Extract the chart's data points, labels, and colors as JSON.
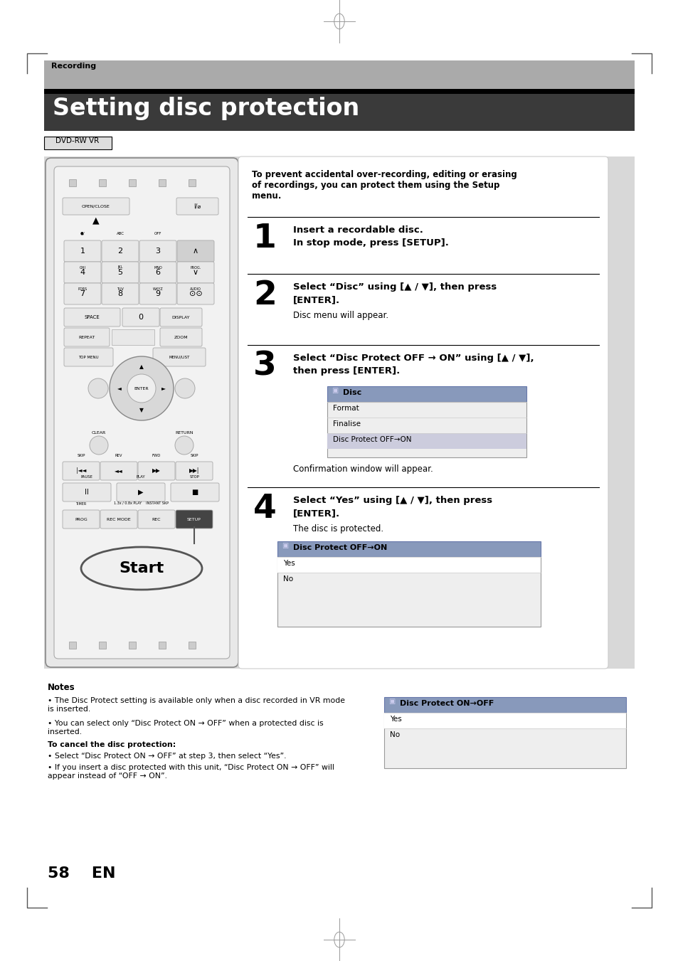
{
  "bg_color": "#ffffff",
  "header_band_color": "#aaaaaa",
  "header_text": "Recording",
  "title_band_color": "#3a3a3a",
  "title_text": "Setting disc protection",
  "subtitle_label": "DVD-RW VR",
  "intro_text": "To prevent accidental over-recording, editing or erasing\nof recordings, you can protect them using the Setup\nmenu.",
  "step1_line1": "Insert a recordable disc.",
  "step1_line2": "In stop mode, press [SETUP].",
  "step2_line1": "Select “Disc” using [▲ / ▼], then press",
  "step2_line2": "[ENTER].",
  "step2_sub": "Disc menu will appear.",
  "step3_line1": "Select “Disc Protect OFF → ON” using [▲ / ▼],",
  "step3_line2": "then press [ENTER].",
  "step3_sub": "Confirmation window will appear.",
  "step4_line1": "Select “Yes” using [▲ / ▼], then press",
  "step4_line2": "[ENTER].",
  "step4_sub": "The disc is protected.",
  "disc_menu_title": "Disc",
  "disc_menu_items": [
    "Format",
    "Finalise",
    "Disc Protect OFF→ON"
  ],
  "disc_protect_title": "Disc Protect OFF→ON",
  "disc_protect_items": [
    "Yes",
    "No"
  ],
  "disc_protect2_title": "Disc Protect ON→OFF",
  "disc_protect2_items": [
    "Yes",
    "No"
  ],
  "notes_title": "Notes",
  "note1": "The Disc Protect setting is available only when a disc recorded in VR mode\nis inserted.",
  "note2": "You can select only “Disc Protect ON → OFF” when a protected disc is\ninserted.",
  "note3_title": "To cancel the disc protection:",
  "note3a": "Select “Disc Protect ON → OFF” at step 3, then select “Yes”.",
  "note3b": "If you insert a disc protected with this unit, “Disc Protect ON → OFF” will\nappear instead of “OFF → ON”.",
  "page_num": "58    EN",
  "start_label": "Start"
}
